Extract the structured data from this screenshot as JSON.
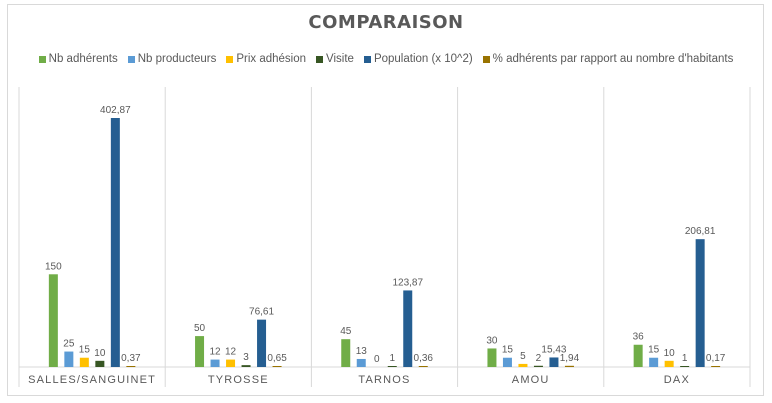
{
  "chart_data": {
    "type": "bar",
    "title": "COMPARAISON",
    "categories": [
      "SALLES/SANGUINET",
      "TYROSSE",
      "TARNOS",
      "AMOU",
      "DAX"
    ],
    "series": [
      {
        "name": "Nb adhérents",
        "color": "#70ad47",
        "values": [
          150,
          50,
          45,
          30,
          36
        ],
        "labels": [
          "150",
          "50",
          "45",
          "30",
          "36"
        ]
      },
      {
        "name": "Nb producteurs",
        "color": "#5b9bd5",
        "values": [
          25,
          12,
          13,
          15,
          15
        ],
        "labels": [
          "25",
          "12",
          "13",
          "15",
          "15"
        ]
      },
      {
        "name": "Prix adhésion",
        "color": "#ffc000",
        "values": [
          15,
          12,
          0,
          5,
          10
        ],
        "labels": [
          "15",
          "12",
          "0",
          "5",
          "10"
        ]
      },
      {
        "name": "Visite",
        "color": "#375623",
        "values": [
          10,
          3,
          1,
          2,
          1
        ],
        "labels": [
          "10",
          "3",
          "1",
          "2",
          "1"
        ]
      },
      {
        "name": "Population (x 10^2)",
        "color": "#255e91",
        "values": [
          402.87,
          76.61,
          123.87,
          15.43,
          206.81
        ],
        "labels": [
          "402,87",
          "76,61",
          "123,87",
          "15,43",
          "206,81"
        ]
      },
      {
        "name": "% adhérents par rapport au nombre d'habitants",
        "color": "#997300",
        "values": [
          0.37,
          0.65,
          0.36,
          1.94,
          0.17
        ],
        "labels": [
          "0,37",
          "0,65",
          "0,36",
          "1,94",
          "0,17"
        ]
      }
    ],
    "grid": false,
    "legend_position": "top"
  }
}
